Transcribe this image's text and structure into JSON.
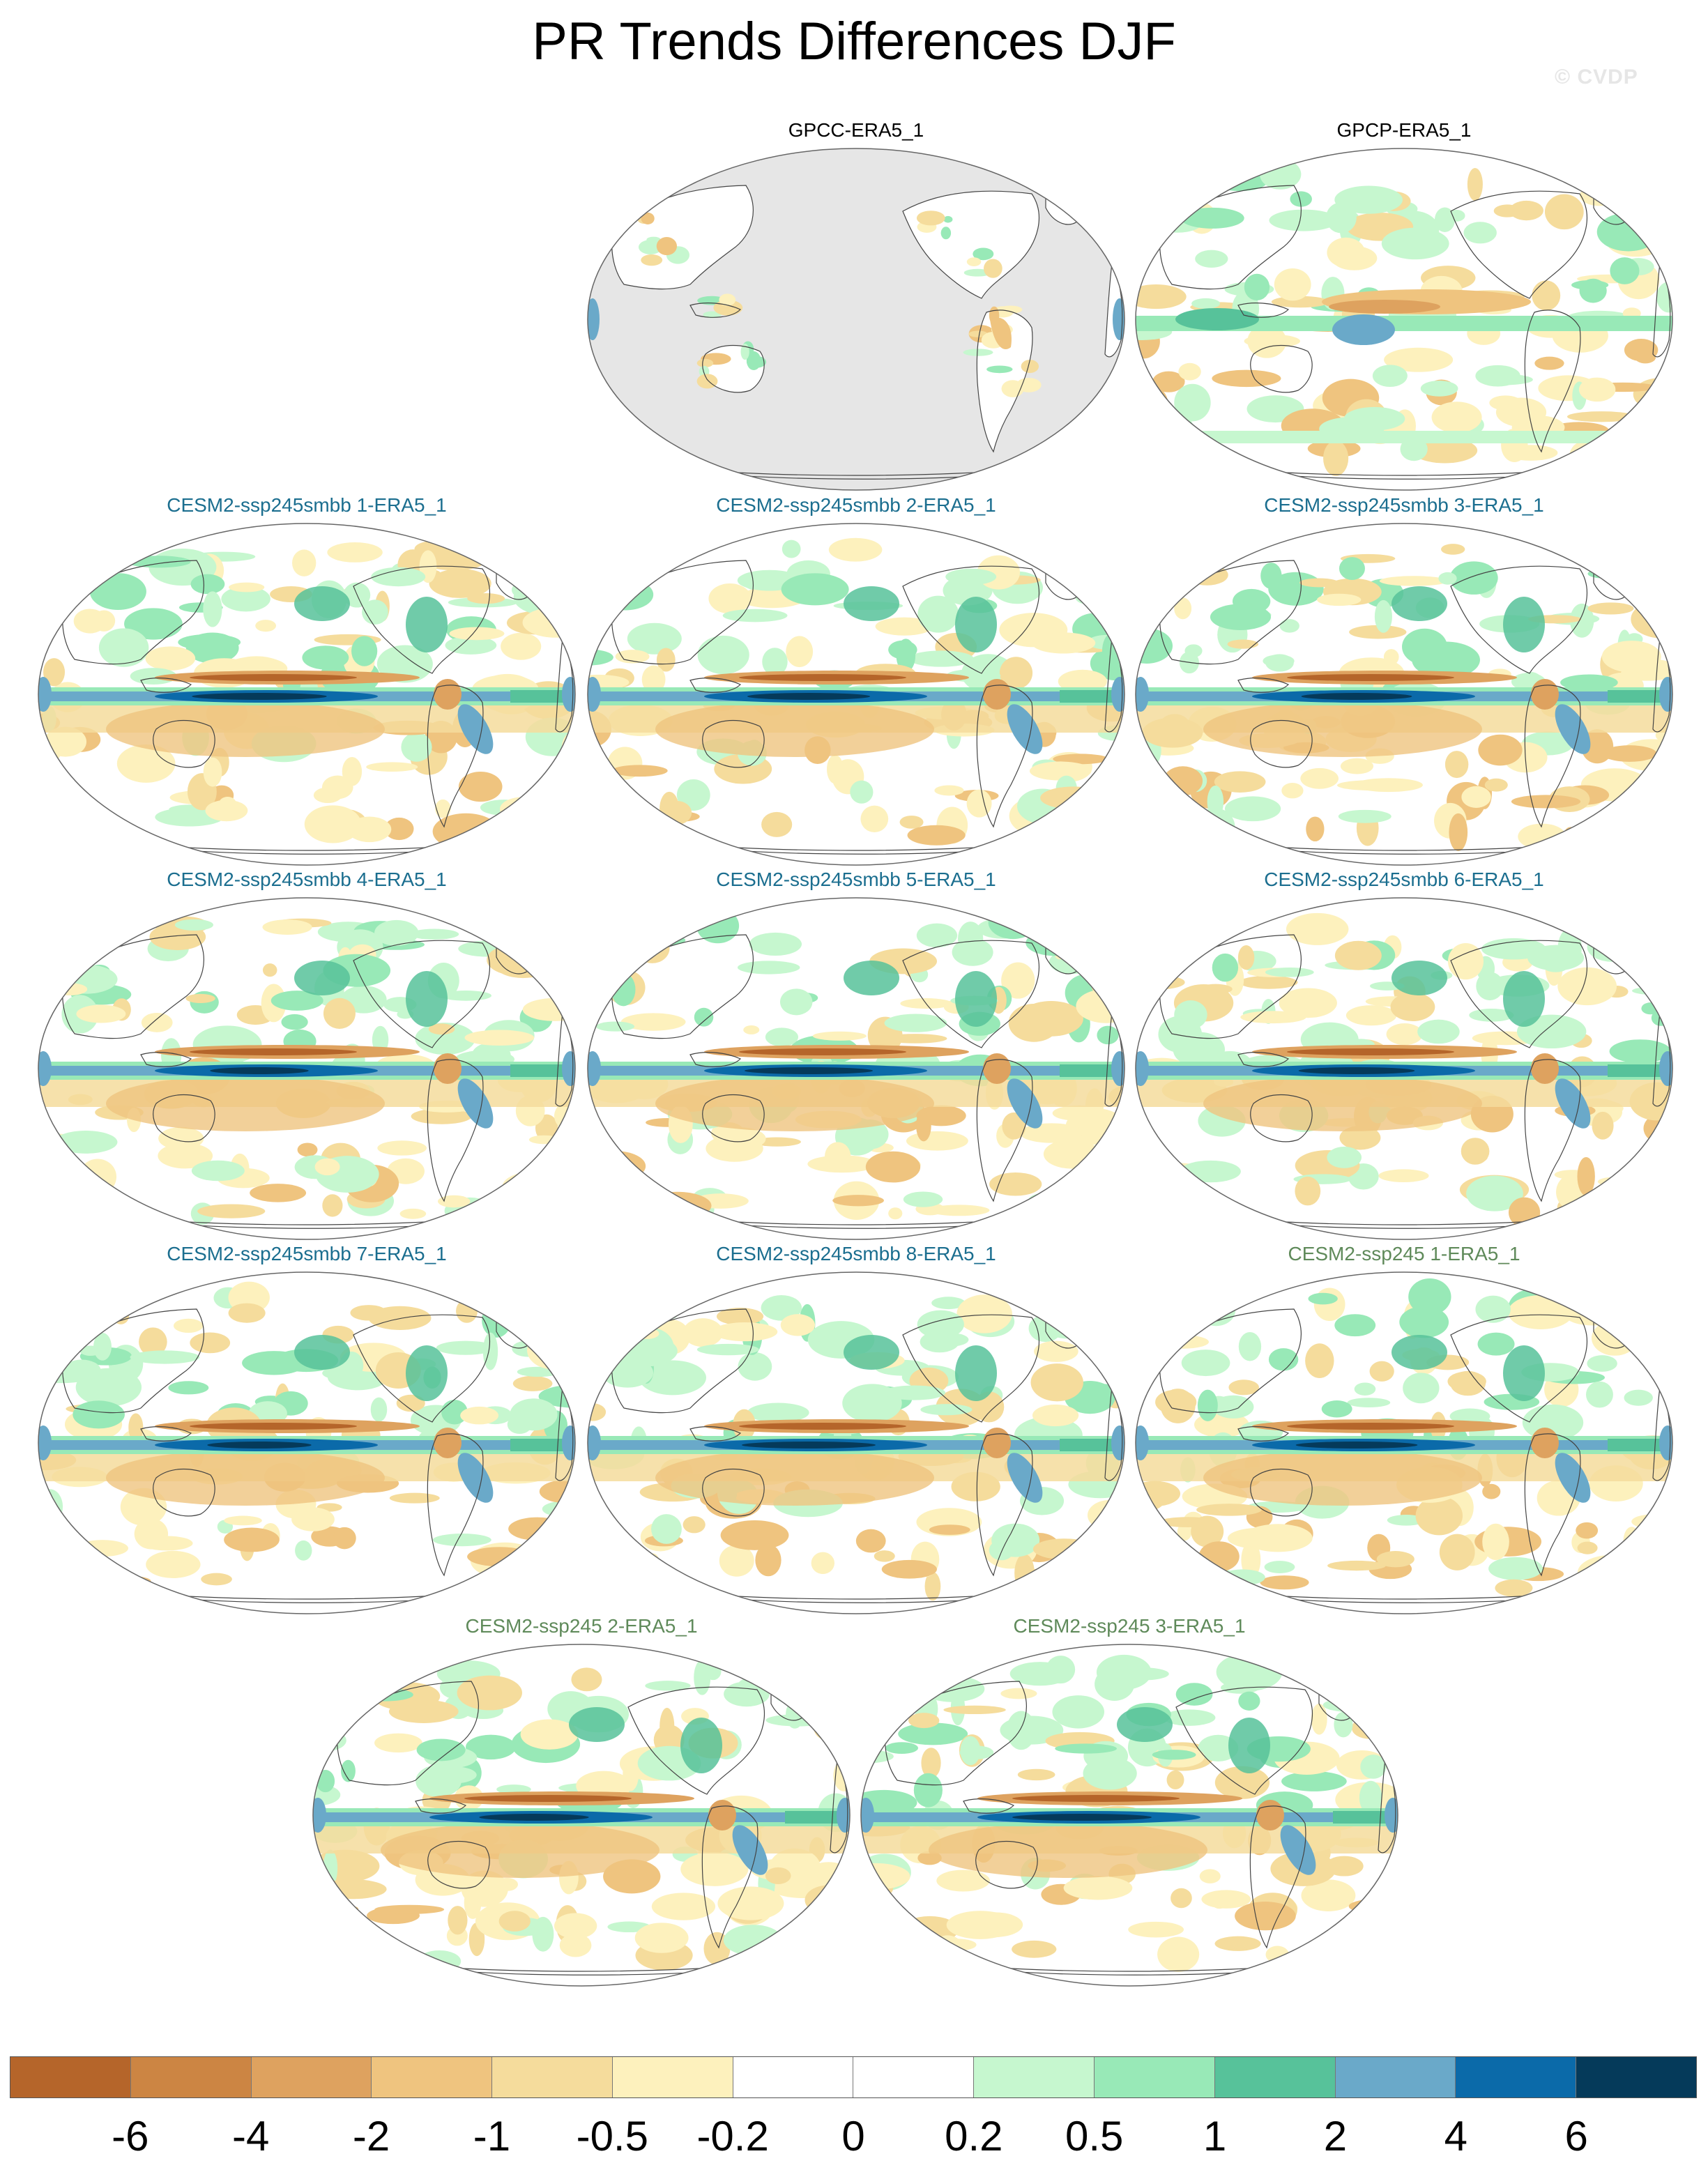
{
  "title": "PR Trends Differences DJF",
  "watermark": "© CVDP",
  "colors": {
    "land_mask": "#e6e6e6",
    "coast": "#444444",
    "obs_title": "#000000",
    "smbb_title": "#1b6e8f",
    "ssp245_title": "#5f8a5a"
  },
  "panels": [
    {
      "title": "GPCC-ERA5_1",
      "group": "obs",
      "pattern": "gpcc"
    },
    {
      "title": "GPCP-ERA5_1",
      "group": "obs",
      "pattern": "gpcp"
    },
    {
      "title": "CESM2-ssp245smbb 1-ERA5_1",
      "group": "smbb",
      "pattern": "model"
    },
    {
      "title": "CESM2-ssp245smbb 2-ERA5_1",
      "group": "smbb",
      "pattern": "model"
    },
    {
      "title": "CESM2-ssp245smbb 3-ERA5_1",
      "group": "smbb",
      "pattern": "model"
    },
    {
      "title": "CESM2-ssp245smbb 4-ERA5_1",
      "group": "smbb",
      "pattern": "model"
    },
    {
      "title": "CESM2-ssp245smbb 5-ERA5_1",
      "group": "smbb",
      "pattern": "model"
    },
    {
      "title": "CESM2-ssp245smbb 6-ERA5_1",
      "group": "smbb",
      "pattern": "model"
    },
    {
      "title": "CESM2-ssp245smbb 7-ERA5_1",
      "group": "smbb",
      "pattern": "model"
    },
    {
      "title": "CESM2-ssp245smbb 8-ERA5_1",
      "group": "smbb",
      "pattern": "model"
    },
    {
      "title": "CESM2-ssp245 1-ERA5_1",
      "group": "ssp245",
      "pattern": "model"
    },
    {
      "title": "CESM2-ssp245 2-ERA5_1",
      "group": "ssp245",
      "pattern": "model"
    },
    {
      "title": "CESM2-ssp245 3-ERA5_1",
      "group": "ssp245",
      "pattern": "model"
    }
  ],
  "colorbar": {
    "colors": [
      "#b5652a",
      "#cc8543",
      "#dea25f",
      "#efc47f",
      "#f5dc9c",
      "#fdf1bd",
      "#ffffff",
      "#ffffff",
      "#c6f7cf",
      "#98e9b7",
      "#57c29a",
      "#6aa9c9",
      "#0b6aa9",
      "#053a5a"
    ],
    "labels": [
      "-6",
      "-4",
      "-2",
      "-1",
      "-0.5",
      "-0.2",
      "0",
      "0.2",
      "0.5",
      "1",
      "2",
      "4",
      "6"
    ]
  }
}
